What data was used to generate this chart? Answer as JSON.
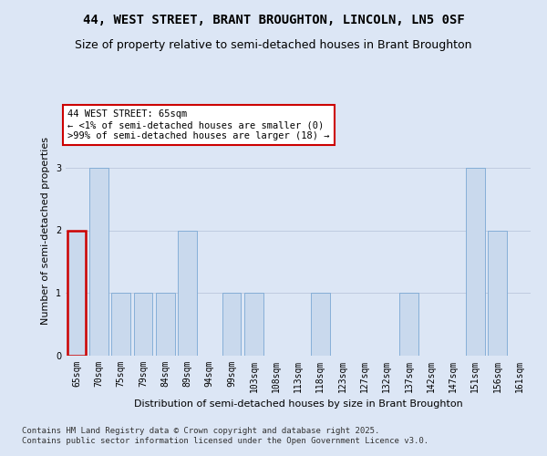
{
  "title": "44, WEST STREET, BRANT BROUGHTON, LINCOLN, LN5 0SF",
  "subtitle": "Size of property relative to semi-detached houses in Brant Broughton",
  "xlabel": "Distribution of semi-detached houses by size in Brant Broughton",
  "ylabel": "Number of semi-detached properties",
  "categories": [
    "65sqm",
    "70sqm",
    "75sqm",
    "79sqm",
    "84sqm",
    "89sqm",
    "94sqm",
    "99sqm",
    "103sqm",
    "108sqm",
    "113sqm",
    "118sqm",
    "123sqm",
    "127sqm",
    "132sqm",
    "137sqm",
    "142sqm",
    "147sqm",
    "151sqm",
    "156sqm",
    "161sqm"
  ],
  "values": [
    2,
    3,
    1,
    1,
    1,
    2,
    0,
    1,
    1,
    0,
    0,
    1,
    0,
    0,
    0,
    1,
    0,
    0,
    3,
    2,
    0
  ],
  "bar_color": "#c9d9ed",
  "bar_edge_color": "#7aa8d4",
  "highlight_index": 0,
  "highlight_color": "#cc0000",
  "annotation_box_color": "#ffffff",
  "annotation_box_edge": "#cc0000",
  "annotation_title": "44 WEST STREET: 65sqm",
  "annotation_line1": "← <1% of semi-detached houses are smaller (0)",
  "annotation_line2": ">99% of semi-detached houses are larger (18) →",
  "ylim": [
    0,
    4
  ],
  "yticks": [
    0,
    1,
    2,
    3
  ],
  "background_color": "#dce6f5",
  "grid_color": "#c0cce0",
  "footer1": "Contains HM Land Registry data © Crown copyright and database right 2025.",
  "footer2": "Contains public sector information licensed under the Open Government Licence v3.0.",
  "title_fontsize": 10,
  "subtitle_fontsize": 9,
  "xlabel_fontsize": 8,
  "ylabel_fontsize": 8,
  "tick_fontsize": 7,
  "annotation_fontsize": 7.5,
  "footer_fontsize": 6.5
}
